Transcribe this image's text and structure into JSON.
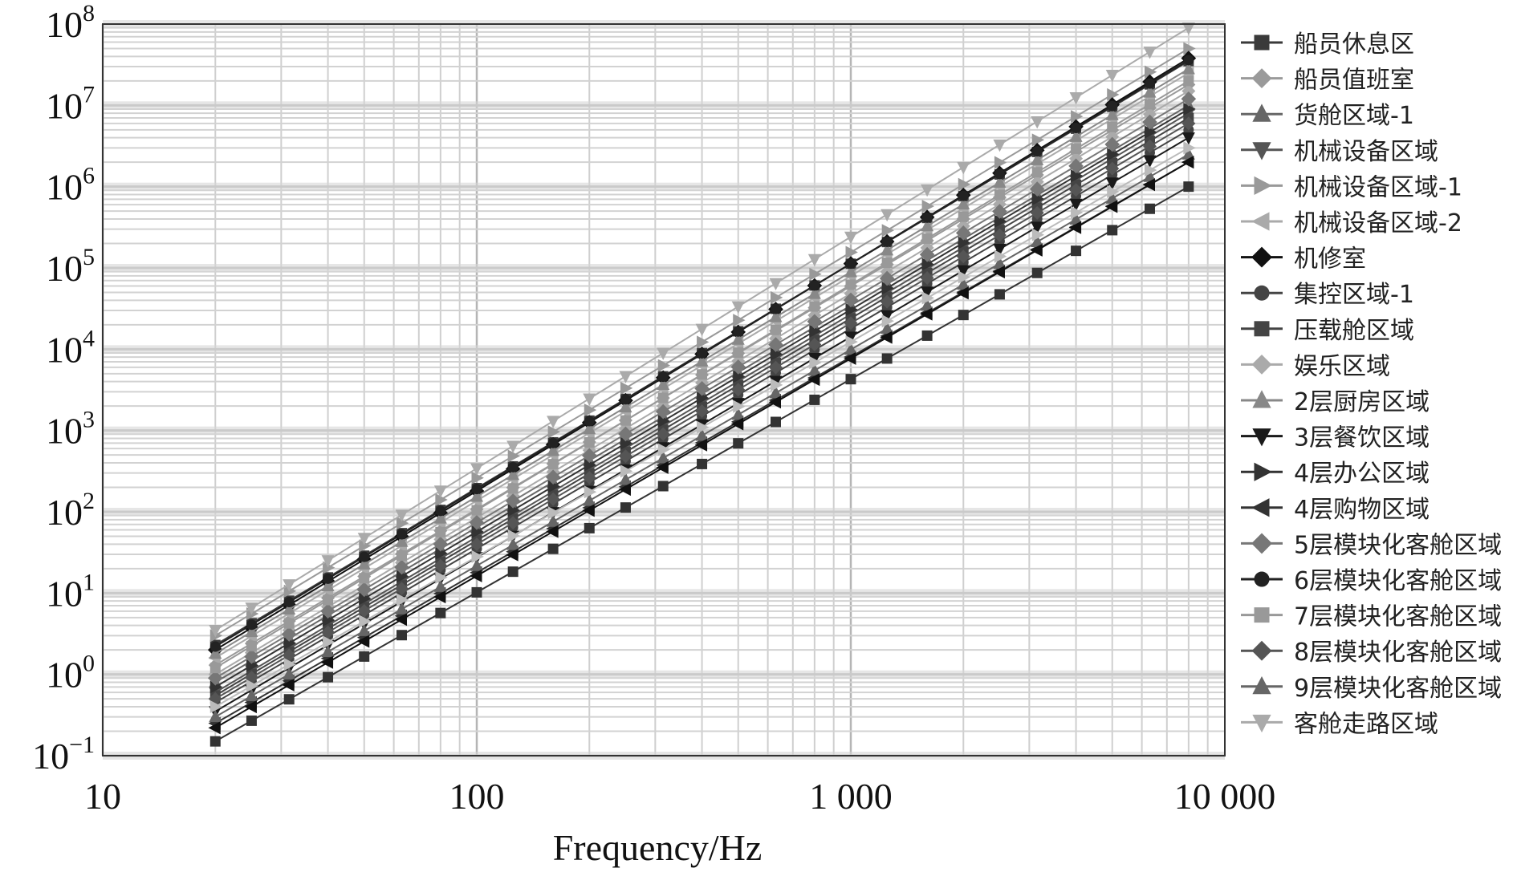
{
  "chart_data": {
    "type": "line",
    "xlabel": "Frequency/Hz",
    "ylabel": "",
    "x_scale": "log",
    "y_scale": "log",
    "xlim": [
      10,
      10000
    ],
    "ylim": [
      0.1,
      100000000
    ],
    "x_ticks": [
      {
        "value": 10,
        "label": "10"
      },
      {
        "value": 100,
        "label": "100"
      },
      {
        "value": 1000,
        "label": "1 000"
      },
      {
        "value": 10000,
        "label": "10 000"
      }
    ],
    "y_ticks": [
      {
        "value": 0.1,
        "base": "10",
        "exp": "−1"
      },
      {
        "value": 1,
        "base": "10",
        "exp": "0"
      },
      {
        "value": 10,
        "base": "10",
        "exp": "1"
      },
      {
        "value": 100,
        "base": "10",
        "exp": "2"
      },
      {
        "value": 1000,
        "base": "10",
        "exp": "3"
      },
      {
        "value": 10000,
        "base": "10",
        "exp": "4"
      },
      {
        "value": 100000,
        "base": "10",
        "exp": "5"
      },
      {
        "value": 1000000,
        "base": "10",
        "exp": "6"
      },
      {
        "value": 10000000,
        "base": "10",
        "exp": "7"
      },
      {
        "value": 100000000,
        "base": "10",
        "exp": "8"
      }
    ],
    "grid": true,
    "legend_position": "right",
    "x": [
      20,
      25,
      31.5,
      40,
      50,
      63,
      80,
      100,
      125,
      160,
      200,
      250,
      315,
      400,
      500,
      630,
      800,
      1000,
      1250,
      1600,
      2000,
      2500,
      3150,
      4000,
      5000,
      6300,
      8000
    ],
    "series": [
      {
        "name": "船员休息区",
        "marker": "square",
        "color": "#3a3a3a",
        "y_at_20": 2.3,
        "y_at_8000": 35000000
      },
      {
        "name": "船员值班室",
        "marker": "diamond",
        "color": "#9a9a9a",
        "y_at_20": 1.3,
        "y_at_8000": 18000000
      },
      {
        "name": "货舱区域-1",
        "marker": "triangle-up",
        "color": "#666666",
        "y_at_20": 0.8,
        "y_at_8000": 10000000
      },
      {
        "name": "机械设备区域",
        "marker": "triangle-down",
        "color": "#555555",
        "y_at_20": 0.6,
        "y_at_8000": 8000000
      },
      {
        "name": "机械设备区域-1",
        "marker": "triangle-right",
        "color": "#999999",
        "y_at_20": 3.0,
        "y_at_8000": 50000000
      },
      {
        "name": "机械设备区域-2",
        "marker": "triangle-left",
        "color": "#aaaaaa",
        "y_at_20": 1.6,
        "y_at_8000": 25000000
      },
      {
        "name": "机修室",
        "marker": "cross",
        "color": "#111111",
        "y_at_20": 2.0,
        "y_at_8000": 38000000
      },
      {
        "name": "集控区域-1",
        "marker": "circle",
        "color": "#444444",
        "y_at_20": 0.45,
        "y_at_8000": 5000000
      },
      {
        "name": "压载舱区域",
        "marker": "square",
        "color": "#444444",
        "y_at_20": 0.55,
        "y_at_8000": 7000000
      },
      {
        "name": "娱乐区域",
        "marker": "diamond",
        "color": "#aaaaaa",
        "y_at_20": 1.0,
        "y_at_8000": 15000000
      },
      {
        "name": "2层厨房区域",
        "marker": "triangle-up",
        "color": "#888888",
        "y_at_20": 1.8,
        "y_at_8000": 28000000
      },
      {
        "name": "3层餐饮区域",
        "marker": "triangle-down",
        "color": "#1a1a1a",
        "y_at_20": 0.35,
        "y_at_8000": 4000000
      },
      {
        "name": "4层办公区域",
        "marker": "triangle-right",
        "color": "#333333",
        "y_at_20": 0.7,
        "y_at_8000": 9000000
      },
      {
        "name": "4层购物区域",
        "marker": "triangle-left",
        "color": "#333333",
        "y_at_20": 0.25,
        "y_at_8000": 2000000
      },
      {
        "name": "5层模块化客舱区域",
        "marker": "cross",
        "color": "#777777",
        "y_at_20": 0.9,
        "y_at_8000": 12000000
      },
      {
        "name": "6层模块化客舱区域",
        "marker": "circle",
        "color": "#222222",
        "y_at_20": 2.2,
        "y_at_8000": 36000000
      },
      {
        "name": "7层模块化客舱区域",
        "marker": "square",
        "color": "#999999",
        "y_at_20": 1.2,
        "y_at_8000": 20000000
      },
      {
        "name": "8层模块化客舱区域",
        "marker": "diamond",
        "color": "#555555",
        "y_at_20": 0.5,
        "y_at_8000": 6000000
      },
      {
        "name": "9层模块化客舱区域",
        "marker": "triangle-up",
        "color": "#666666",
        "y_at_20": 0.3,
        "y_at_8000": 2500000
      },
      {
        "name": "客舱走路区域",
        "marker": "triangle-down",
        "color": "#aaaaaa",
        "y_at_20": 3.5,
        "y_at_8000": 90000000
      },
      {
        "name": "",
        "marker": "triangle-right",
        "color": "#bbbbbb",
        "y_at_20": 0.4,
        "y_at_8000": 3000000
      },
      {
        "name": "",
        "marker": "triangle-left",
        "color": "#111111",
        "y_at_20": 0.22,
        "y_at_8000": 2000000
      },
      {
        "name": "",
        "marker": "square",
        "color": "#333333",
        "y_at_20": 0.15,
        "y_at_8000": 1000000
      }
    ]
  }
}
